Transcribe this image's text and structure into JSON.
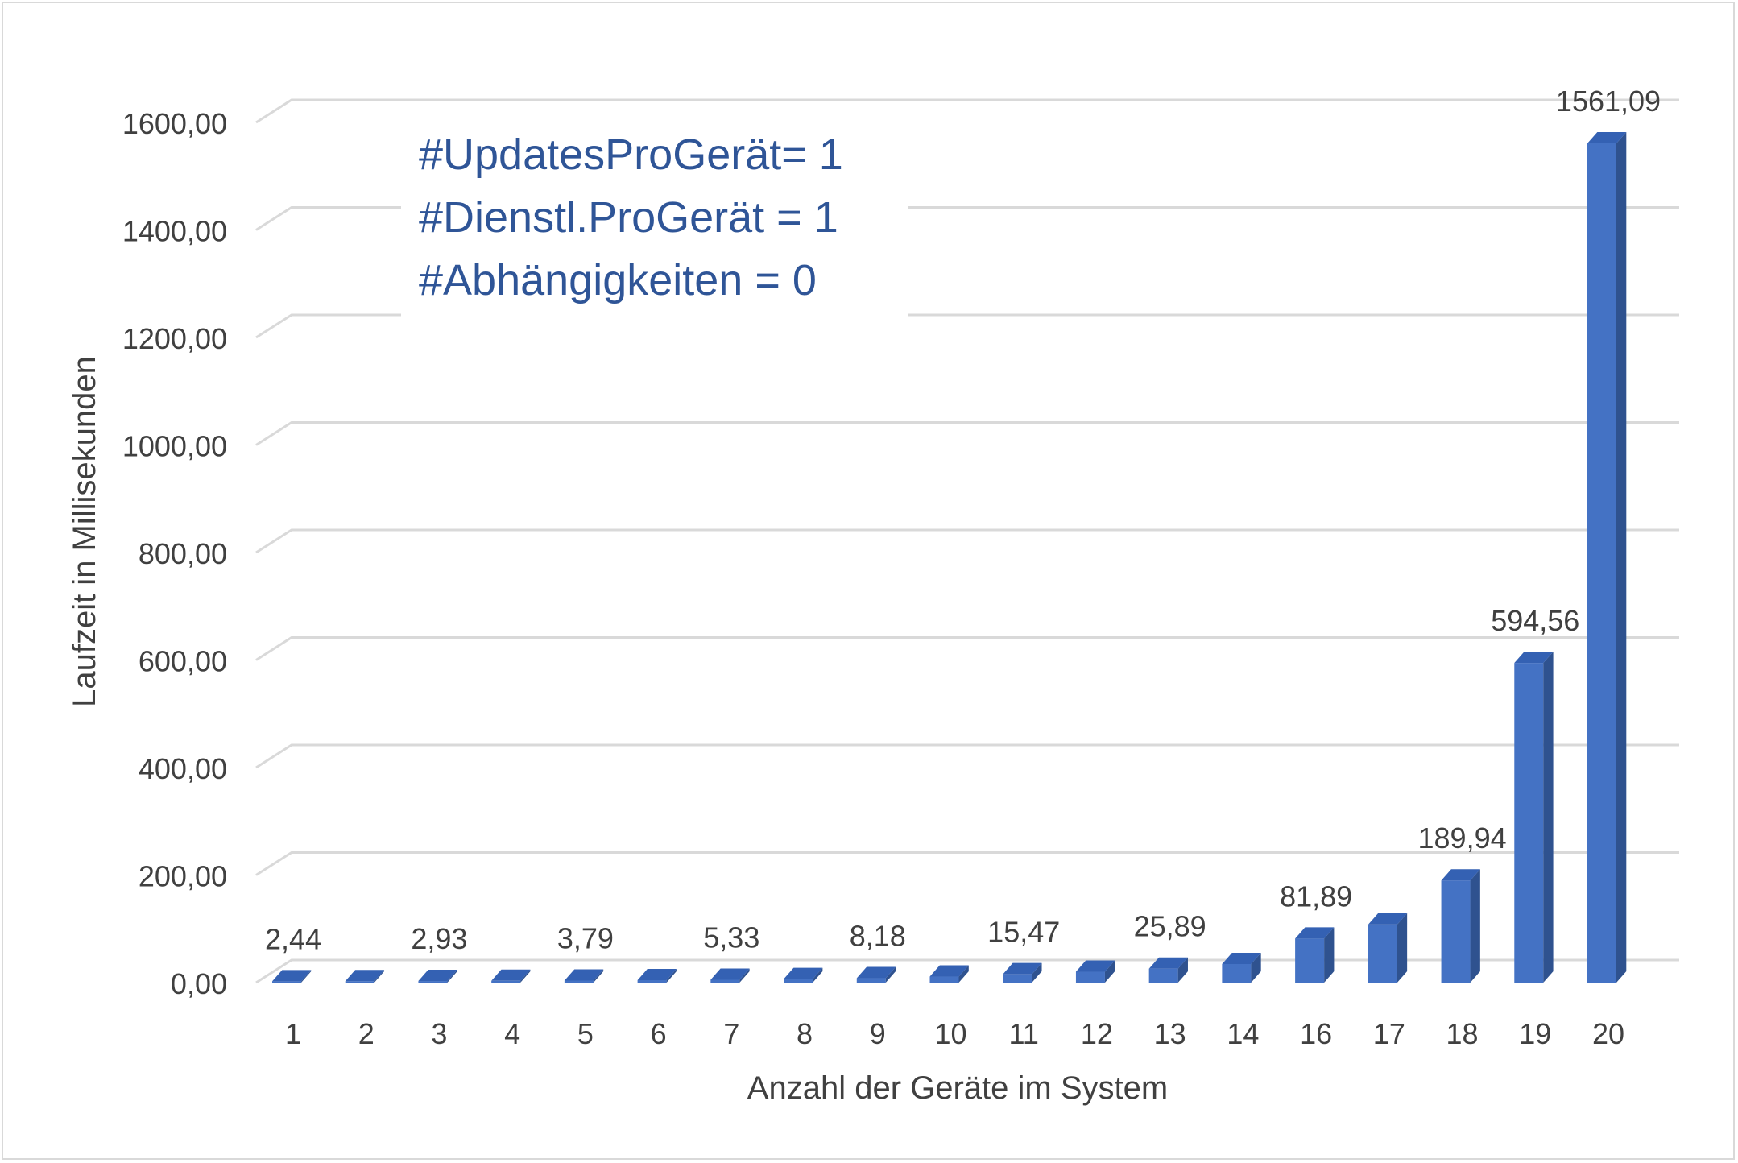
{
  "chart_data": {
    "type": "bar",
    "variant": "3d-column",
    "categories": [
      "1",
      "2",
      "3",
      "4",
      "5",
      "6",
      "7",
      "8",
      "9",
      "10",
      "11",
      "12",
      "13",
      "14",
      "16",
      "17",
      "18",
      "19",
      "20"
    ],
    "values": [
      2.44,
      2.6,
      2.93,
      3.3,
      3.79,
      4.5,
      5.33,
      6.5,
      8.18,
      11.2,
      15.47,
      20.2,
      25.89,
      34.5,
      81.89,
      108.0,
      189.94,
      594.56,
      1561.09
    ],
    "data_labels": {
      "1": "2,44",
      "3": "2,93",
      "5": "3,79",
      "7": "5,33",
      "9": "8,18",
      "11": "15,47",
      "13": "25,89",
      "16": "81,89",
      "18": "189,94",
      "19": "594,56",
      "20": "1561,09"
    },
    "xlabel": "Anzahl der Geräte im System",
    "ylabel": "Laufzeit in Millisekunden",
    "ylim": [
      0,
      1600
    ],
    "yticks": [
      0,
      200,
      400,
      600,
      800,
      1000,
      1200,
      1400,
      1600
    ],
    "ytick_labels": [
      "0,00",
      "200,00",
      "400,00",
      "600,00",
      "800,00",
      "1000,00",
      "1200,00",
      "1400,00",
      "1600,00"
    ],
    "grid": true,
    "legend": "none",
    "annotation_lines": [
      "#UpdatesProGerät= 1",
      "#Dienstl.ProGerät = 1",
      "#Abhängigkeiten = 0"
    ],
    "colors": {
      "bar_front": "#4472c4",
      "bar_side": "#2f528f",
      "bar_top": "#3461b3",
      "annotation": "#2f5597",
      "grid": "#d9d9d9",
      "text": "#404040"
    }
  }
}
